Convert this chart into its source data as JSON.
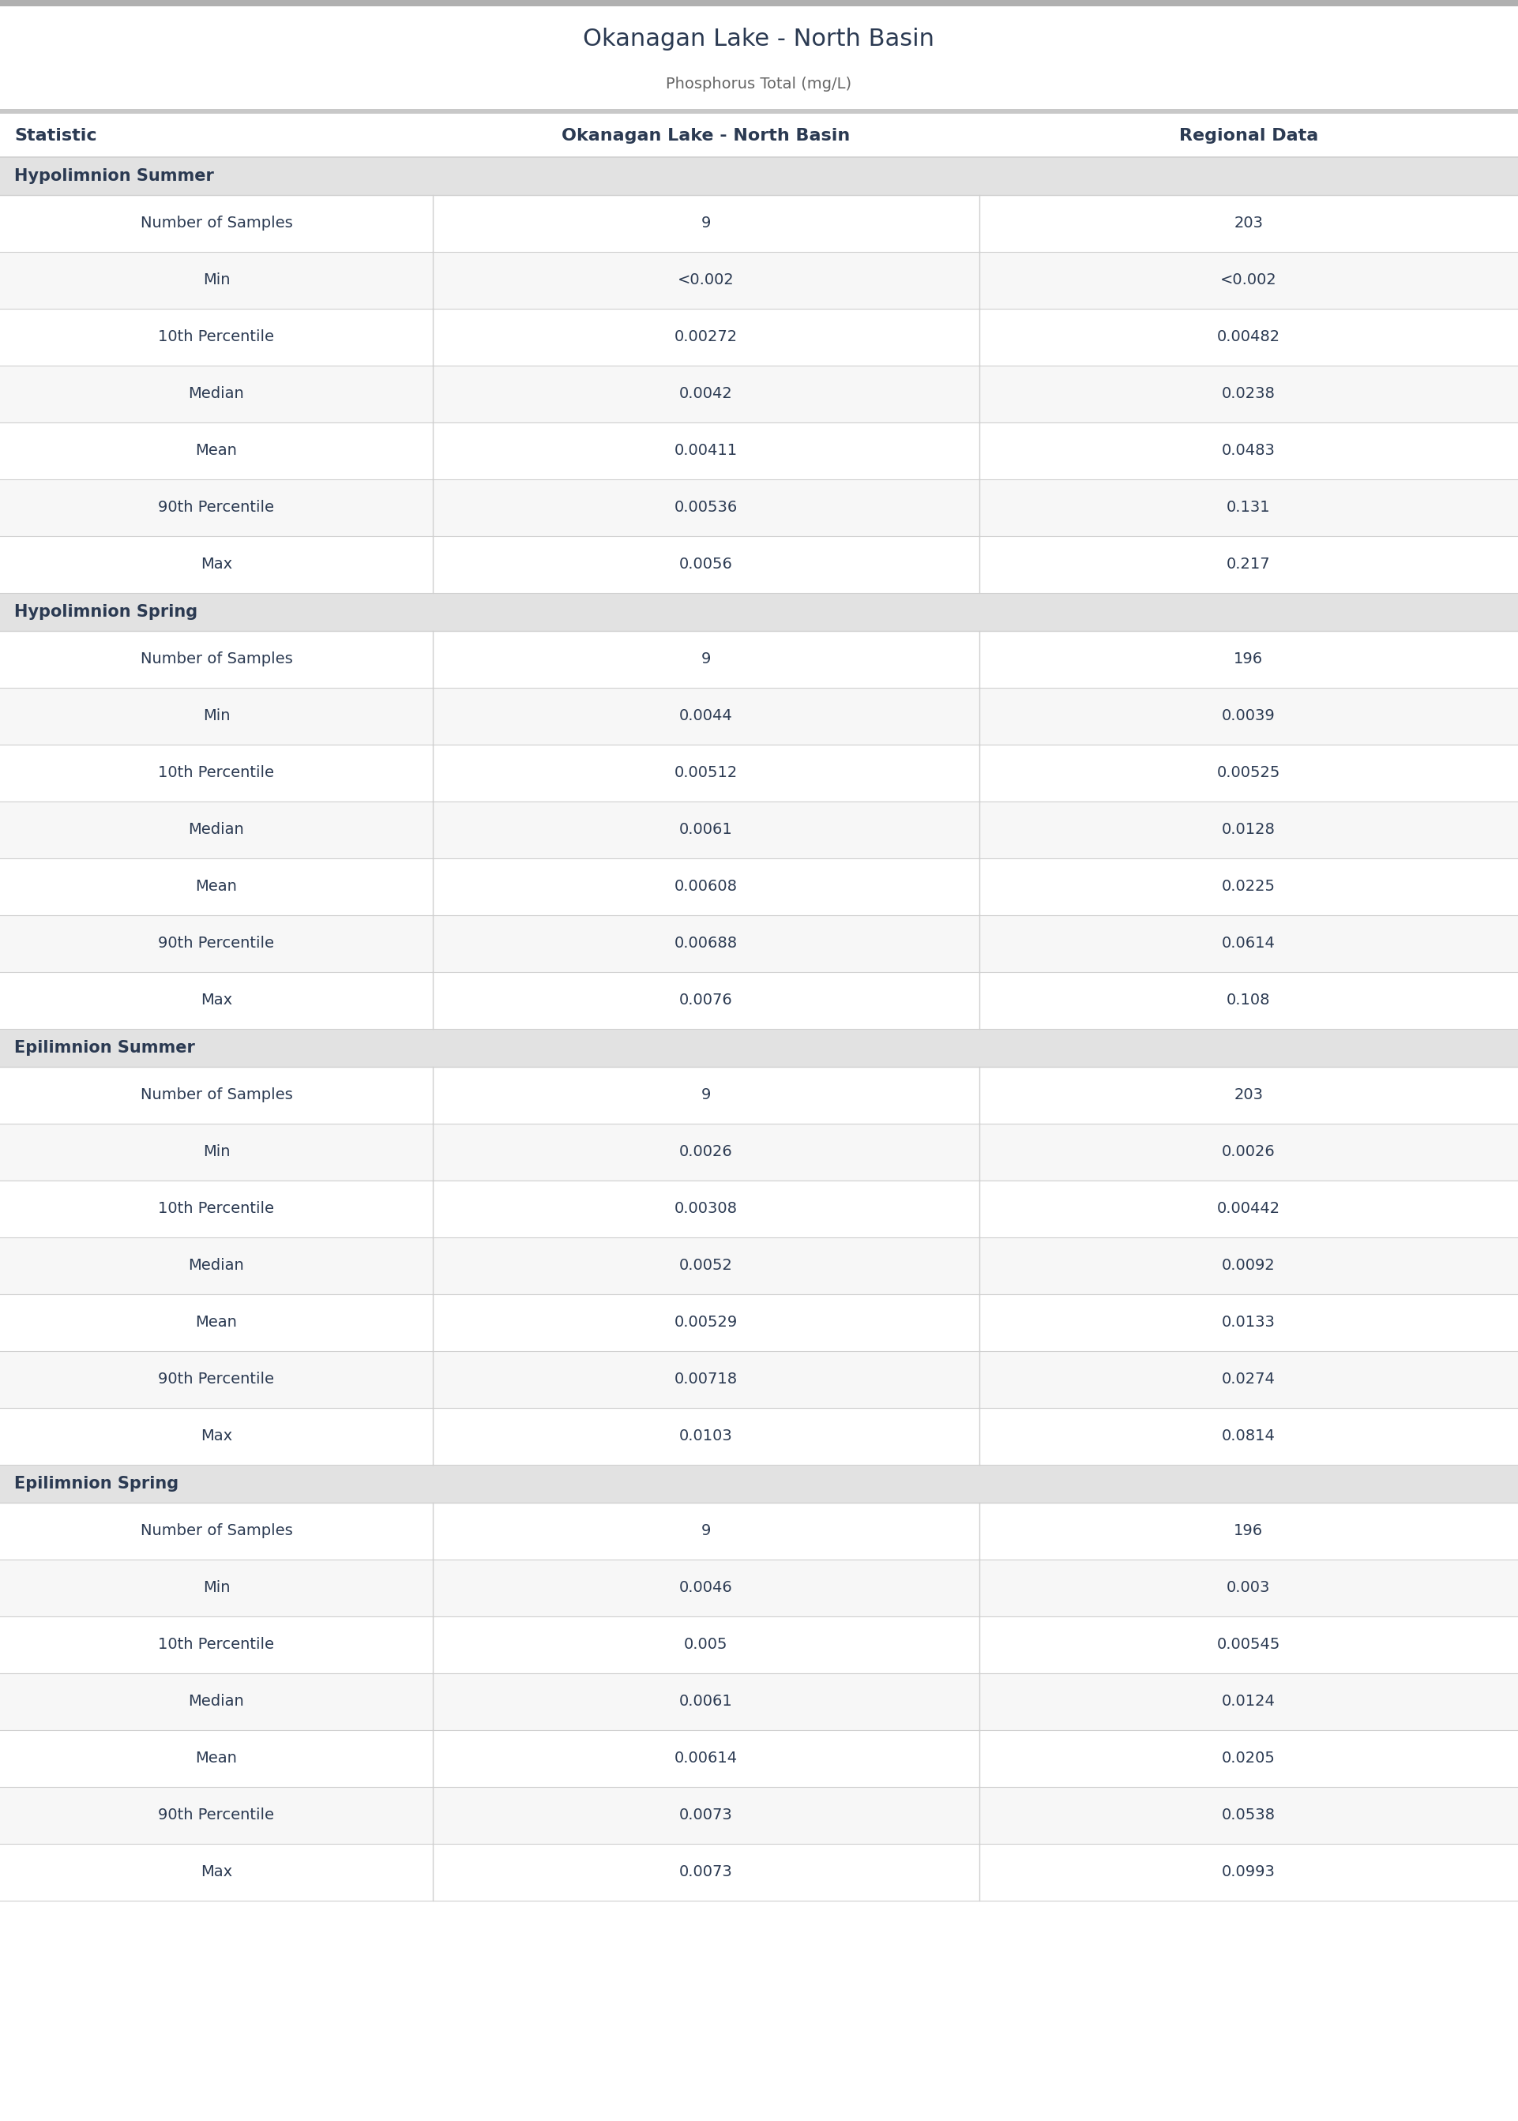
{
  "title": "Okanagan Lake - North Basin",
  "subtitle": "Phosphorus Total (mg/L)",
  "col_headers": [
    "Statistic",
    "Okanagan Lake - North Basin",
    "Regional Data"
  ],
  "sections": [
    {
      "name": "Hypolimnion Summer",
      "rows": [
        [
          "Number of Samples",
          "9",
          "203"
        ],
        [
          "Min",
          "<0.002",
          "<0.002"
        ],
        [
          "10th Percentile",
          "0.00272",
          "0.00482"
        ],
        [
          "Median",
          "0.0042",
          "0.0238"
        ],
        [
          "Mean",
          "0.00411",
          "0.0483"
        ],
        [
          "90th Percentile",
          "0.00536",
          "0.131"
        ],
        [
          "Max",
          "0.0056",
          "0.217"
        ]
      ]
    },
    {
      "name": "Hypolimnion Spring",
      "rows": [
        [
          "Number of Samples",
          "9",
          "196"
        ],
        [
          "Min",
          "0.0044",
          "0.0039"
        ],
        [
          "10th Percentile",
          "0.00512",
          "0.00525"
        ],
        [
          "Median",
          "0.0061",
          "0.0128"
        ],
        [
          "Mean",
          "0.00608",
          "0.0225"
        ],
        [
          "90th Percentile",
          "0.00688",
          "0.0614"
        ],
        [
          "Max",
          "0.0076",
          "0.108"
        ]
      ]
    },
    {
      "name": "Epilimnion Summer",
      "rows": [
        [
          "Number of Samples",
          "9",
          "203"
        ],
        [
          "Min",
          "0.0026",
          "0.0026"
        ],
        [
          "10th Percentile",
          "0.00308",
          "0.00442"
        ],
        [
          "Median",
          "0.0052",
          "0.0092"
        ],
        [
          "Mean",
          "0.00529",
          "0.0133"
        ],
        [
          "90th Percentile",
          "0.00718",
          "0.0274"
        ],
        [
          "Max",
          "0.0103",
          "0.0814"
        ]
      ]
    },
    {
      "name": "Epilimnion Spring",
      "rows": [
        [
          "Number of Samples",
          "9",
          "196"
        ],
        [
          "Min",
          "0.0046",
          "0.003"
        ],
        [
          "10th Percentile",
          "0.005",
          "0.00545"
        ],
        [
          "Median",
          "0.0061",
          "0.0124"
        ],
        [
          "Mean",
          "0.00614",
          "0.0205"
        ],
        [
          "90th Percentile",
          "0.0073",
          "0.0538"
        ],
        [
          "Max",
          "0.0073",
          "0.0993"
        ]
      ]
    }
  ],
  "title_color": "#2b3a52",
  "subtitle_color": "#666666",
  "header_text_color": "#2b3a52",
  "section_header_bg": "#e2e2e2",
  "section_header_text_color": "#2b3a52",
  "data_text_color": "#2b3a52",
  "statistic_text_color": "#2b3a52",
  "row_line_color": "#d0d0d0",
  "top_bar_color": "#b0b0b0",
  "col_divider_color": "#d0d0d0",
  "alt_row_bg": "#f7f7f7",
  "white_row_bg": "#ffffff",
  "title_fontsize": 22,
  "subtitle_fontsize": 14,
  "header_fontsize": 16,
  "section_fontsize": 15,
  "data_fontsize": 14,
  "col_splits": [
    0.285,
    0.645
  ],
  "fig_width": 19.22,
  "fig_height": 26.86
}
